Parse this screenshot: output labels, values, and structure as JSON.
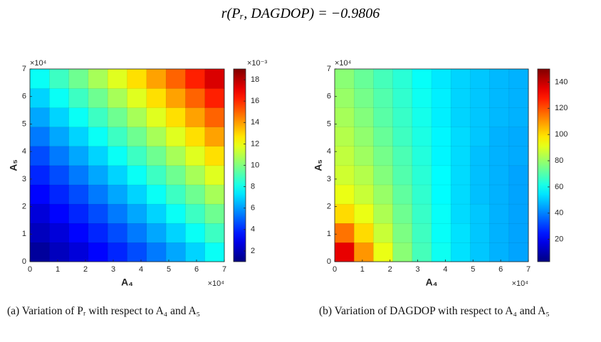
{
  "formula": "r(Pᵣ, DAGDOP) = −0.9806",
  "chart_data": [
    {
      "type": "heatmap",
      "caption": "(a) Variation of Pᵣ with respect to A₄ and A₅",
      "xlabel": "A₄",
      "ylabel": "A₅",
      "x_exponent": "×10⁴",
      "y_exponent": "×10⁴",
      "c_exponent": "×10⁻³",
      "colormap": "jet",
      "xlim": [
        0,
        7
      ],
      "ylim": [
        0,
        7
      ],
      "xticks": [
        0,
        1,
        2,
        3,
        4,
        5,
        6,
        7
      ],
      "yticks": [
        0,
        1,
        2,
        3,
        4,
        5,
        6,
        7
      ],
      "clim": [
        1,
        19
      ],
      "cticks": [
        2,
        4,
        6,
        8,
        10,
        12,
        14,
        16,
        18
      ],
      "x": [
        0.35,
        1.05,
        1.75,
        2.45,
        3.15,
        3.85,
        4.55,
        5.25,
        5.95,
        6.65
      ],
      "y": [
        0.35,
        1.05,
        1.75,
        2.45,
        3.15,
        3.85,
        4.55,
        5.25,
        5.95,
        6.65
      ],
      "z": [
        [
          1.5,
          2.1,
          2.6,
          3.3,
          3.9,
          4.6,
          5.4,
          6.2,
          7.0,
          7.9
        ],
        [
          2.1,
          2.6,
          3.3,
          3.9,
          4.6,
          5.4,
          6.2,
          7.0,
          7.9,
          8.8
        ],
        [
          2.6,
          3.3,
          3.9,
          4.6,
          5.4,
          6.2,
          7.0,
          7.9,
          8.8,
          9.7
        ],
        [
          3.3,
          3.9,
          4.6,
          5.4,
          6.2,
          7.0,
          7.9,
          8.8,
          9.7,
          10.7
        ],
        [
          3.9,
          4.6,
          5.4,
          6.2,
          7.0,
          7.9,
          8.8,
          9.7,
          10.7,
          11.7
        ],
        [
          4.6,
          5.4,
          6.2,
          7.0,
          7.9,
          8.8,
          9.7,
          10.7,
          11.7,
          12.8
        ],
        [
          5.4,
          6.2,
          7.0,
          7.9,
          8.8,
          9.7,
          10.7,
          11.7,
          12.8,
          13.9
        ],
        [
          6.2,
          7.0,
          7.9,
          8.8,
          9.7,
          10.7,
          11.7,
          12.8,
          13.9,
          15.0
        ],
        [
          7.0,
          7.9,
          8.8,
          9.7,
          10.7,
          11.7,
          12.8,
          13.9,
          15.0,
          16.2
        ],
        [
          7.9,
          8.8,
          9.7,
          10.7,
          11.7,
          12.8,
          13.9,
          15.0,
          16.2,
          17.4
        ]
      ]
    },
    {
      "type": "heatmap",
      "caption": "(b) Variation of DAGDOP with respect to A₄ and A₅",
      "xlabel": "A₄",
      "ylabel": "A₅",
      "x_exponent": "×10⁴",
      "y_exponent": "×10⁴",
      "colormap": "jet",
      "xlim": [
        0,
        7
      ],
      "ylim": [
        0,
        7
      ],
      "xticks": [
        0,
        1,
        2,
        3,
        4,
        5,
        6,
        7
      ],
      "yticks": [
        0,
        1,
        2,
        3,
        4,
        5,
        6,
        7
      ],
      "clim": [
        3,
        150
      ],
      "cticks": [
        20,
        40,
        60,
        80,
        100,
        120,
        140
      ],
      "x": [
        0.35,
        1.05,
        1.75,
        2.45,
        3.15,
        3.85,
        4.55,
        5.25,
        5.95,
        6.65
      ],
      "y": [
        0.35,
        1.05,
        1.75,
        2.45,
        3.15,
        3.85,
        4.55,
        5.25,
        5.95,
        6.65
      ],
      "z": [
        [
          135,
          110,
          92,
          78,
          68,
          60,
          54,
          50,
          47,
          45
        ],
        [
          115,
          100,
          87,
          76,
          67,
          59,
          54,
          50,
          47,
          45
        ],
        [
          100,
          92,
          83,
          74,
          66,
          59,
          53,
          50,
          47,
          45
        ],
        [
          92,
          87,
          80,
          72,
          65,
          58,
          53,
          49,
          47,
          45
        ],
        [
          88,
          84,
          77,
          70,
          64,
          58,
          53,
          49,
          47,
          45
        ],
        [
          86,
          81,
          75,
          69,
          63,
          57,
          53,
          49,
          47,
          46
        ],
        [
          84,
          79,
          73,
          67,
          62,
          57,
          53,
          50,
          47,
          46
        ],
        [
          82,
          77,
          71,
          66,
          61,
          56,
          52,
          50,
          48,
          47
        ],
        [
          80,
          75,
          70,
          65,
          60,
          56,
          52,
          50,
          48,
          47
        ],
        [
          78,
          73,
          68,
          64,
          59,
          55,
          52,
          50,
          48,
          47
        ]
      ]
    }
  ]
}
